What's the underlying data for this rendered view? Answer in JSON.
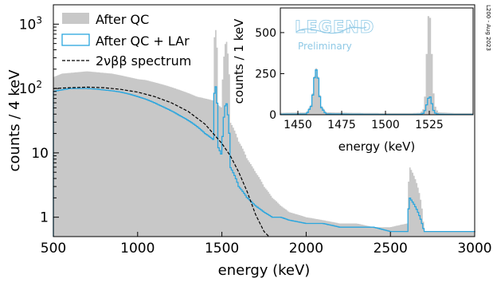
{
  "side_stamp": "L200 - Aug 2023",
  "colors": {
    "after_qc": "#c8c8c8",
    "after_qc_lar": "#2aa6de",
    "fit": "#000000",
    "logo": "#8fc9e6"
  },
  "logo": {
    "name": "LEGEND",
    "subtitle": "Preliminary"
  },
  "chart_data": [
    {
      "type": "area",
      "panel": "main",
      "xlabel": "energy (keV)",
      "ylabel": "counts / 4 keV",
      "xlim": [
        500,
        3000
      ],
      "ylim": [
        0.5,
        2000
      ],
      "yscale": "log",
      "grid": false,
      "legend_position": "top-left",
      "x_ticks": [
        "500",
        "1000",
        "1500",
        "2000",
        "2500",
        "3000"
      ],
      "y_ticks": [
        {
          "value": 1,
          "label": "1"
        },
        {
          "value": 10,
          "label": "10"
        },
        {
          "value": 100,
          "label": "10",
          "exp": "2"
        },
        {
          "value": 1000,
          "label": "10",
          "exp": "3"
        }
      ],
      "legend": [
        {
          "label": "After QC",
          "style": "fill"
        },
        {
          "label": "After QC + LAr",
          "style": "step"
        },
        {
          "label": "2νββ spectrum",
          "style": "dashed"
        }
      ],
      "series": [
        {
          "name": "After QC",
          "style": "filled histogram",
          "x": [
            500,
            550,
            600,
            650,
            700,
            750,
            800,
            850,
            900,
            950,
            1000,
            1050,
            1100,
            1150,
            1200,
            1250,
            1300,
            1350,
            1400,
            1450,
            1460,
            1480,
            1500,
            1525,
            1550,
            1600,
            1650,
            1700,
            1750,
            1800,
            1850,
            1900,
            2000,
            2100,
            2200,
            2300,
            2400,
            2500,
            2600,
            2615,
            2700,
            2800,
            2900,
            3000
          ],
          "y": [
            150,
            170,
            175,
            180,
            185,
            180,
            175,
            170,
            160,
            150,
            140,
            135,
            125,
            115,
            105,
            95,
            85,
            75,
            70,
            65,
            1000,
            55,
            50,
            600,
            30,
            15,
            8,
            5,
            3,
            2,
            1.5,
            1.2,
            1.0,
            0.9,
            0.8,
            0.8,
            0.7,
            0.7,
            0.8,
            6,
            0.6,
            0.6,
            0.6,
            0.6
          ]
        },
        {
          "name": "After QC + LAr",
          "style": "step histogram",
          "x": [
            500,
            550,
            600,
            650,
            700,
            750,
            800,
            850,
            900,
            950,
            1000,
            1050,
            1100,
            1150,
            1200,
            1250,
            1300,
            1350,
            1400,
            1450,
            1460,
            1480,
            1500,
            1525,
            1550,
            1600,
            1650,
            1700,
            1750,
            1800,
            1850,
            1900,
            2000,
            2100,
            2200,
            2300,
            2400,
            2500,
            2600,
            2615,
            2700,
            2800,
            2900,
            3000
          ],
          "y": [
            90,
            95,
            100,
            100,
            100,
            98,
            95,
            92,
            88,
            82,
            75,
            68,
            60,
            52,
            45,
            38,
            32,
            26,
            20,
            16,
            130,
            12,
            9,
            65,
            6,
            3,
            2,
            1.5,
            1.2,
            1.0,
            1.0,
            0.9,
            0.8,
            0.8,
            0.7,
            0.7,
            0.7,
            0.6,
            0.6,
            2,
            0.6,
            0.6,
            0.6,
            0.6
          ]
        },
        {
          "name": "2νββ spectrum",
          "style": "dashed line",
          "x": [
            500,
            600,
            700,
            800,
            900,
            1000,
            1100,
            1200,
            1300,
            1400,
            1500,
            1550,
            1600,
            1650,
            1700,
            1750,
            1780
          ],
          "y": [
            100,
            103,
            105,
            103,
            97,
            88,
            75,
            60,
            44,
            28,
            14,
            9,
            5,
            2.5,
            1.1,
            0.6,
            0.4
          ]
        }
      ]
    },
    {
      "type": "area",
      "panel": "inset",
      "xlabel": "energy (keV)",
      "ylabel": "counts / 1 keV",
      "xlim": [
        1440,
        1550
      ],
      "ylim": [
        0,
        650
      ],
      "grid": false,
      "x_ticks": [
        {
          "value": 1450,
          "label": "1450"
        },
        {
          "value": 1475,
          "label": "1475"
        },
        {
          "value": 1500,
          "label": "1500"
        },
        {
          "value": 1525,
          "label": "1525"
        }
      ],
      "y_ticks": [
        {
          "value": 0,
          "label": "0"
        },
        {
          "value": 250,
          "label": "250"
        },
        {
          "value": 500,
          "label": "500"
        }
      ],
      "series": [
        {
          "name": "After QC",
          "style": "filled histogram",
          "x": [
            1440,
            1455,
            1458,
            1459,
            1460,
            1461,
            1462,
            1463,
            1466,
            1480,
            1500,
            1515,
            1520,
            1522,
            1523,
            1524,
            1525,
            1526,
            1527,
            1528,
            1530,
            1540,
            1550
          ],
          "y": [
            12,
            14,
            70,
            190,
            280,
            285,
            180,
            60,
            15,
            12,
            10,
            10,
            12,
            40,
            180,
            560,
            640,
            540,
            200,
            60,
            15,
            10,
            10
          ]
        },
        {
          "name": "After QC + LAr",
          "style": "step histogram",
          "x": [
            1440,
            1455,
            1458,
            1459,
            1460,
            1461,
            1462,
            1463,
            1466,
            1480,
            1500,
            1515,
            1520,
            1522,
            1523,
            1524,
            1525,
            1526,
            1527,
            1528,
            1530,
            1540,
            1550
          ],
          "y": [
            3,
            4,
            60,
            180,
            270,
            275,
            170,
            50,
            5,
            3,
            2,
            2,
            3,
            10,
            40,
            80,
            120,
            95,
            40,
            12,
            3,
            2,
            2
          ]
        }
      ]
    }
  ]
}
